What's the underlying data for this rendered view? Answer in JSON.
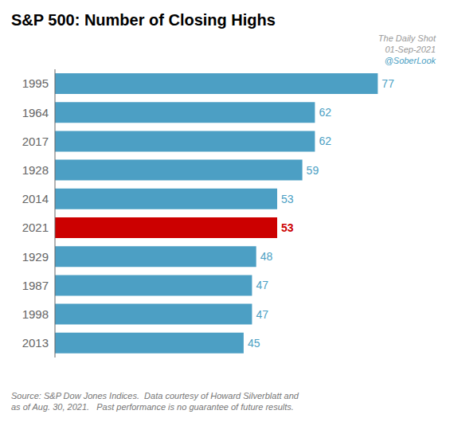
{
  "chart_data": {
    "type": "bar",
    "orientation": "horizontal",
    "title": "S&P 500: Number of Closing Highs",
    "categories": [
      "1995",
      "1964",
      "2017",
      "1928",
      "2014",
      "2021",
      "1929",
      "1987",
      "1998",
      "2013"
    ],
    "values": [
      77,
      62,
      62,
      59,
      53,
      53,
      48,
      47,
      47,
      45
    ],
    "colors": [
      "#4c9fc4",
      "#4c9fc4",
      "#4c9fc4",
      "#4c9fc4",
      "#4c9fc4",
      "#cc0000",
      "#4c9fc4",
      "#4c9fc4",
      "#4c9fc4",
      "#4c9fc4"
    ],
    "xlim": [
      0,
      87
    ],
    "data_labels": true,
    "tick_labels": "y",
    "grid": false,
    "annotations": [
      "The Daily Shot",
      "01-Sep-2021",
      "@SoberLook",
      "Source: S&P Dow Jones Indices.  Data courtesy of Howard Silverblatt and\nas of Aug. 30, 2021.   Past performance is no guarantee of future results."
    ]
  }
}
